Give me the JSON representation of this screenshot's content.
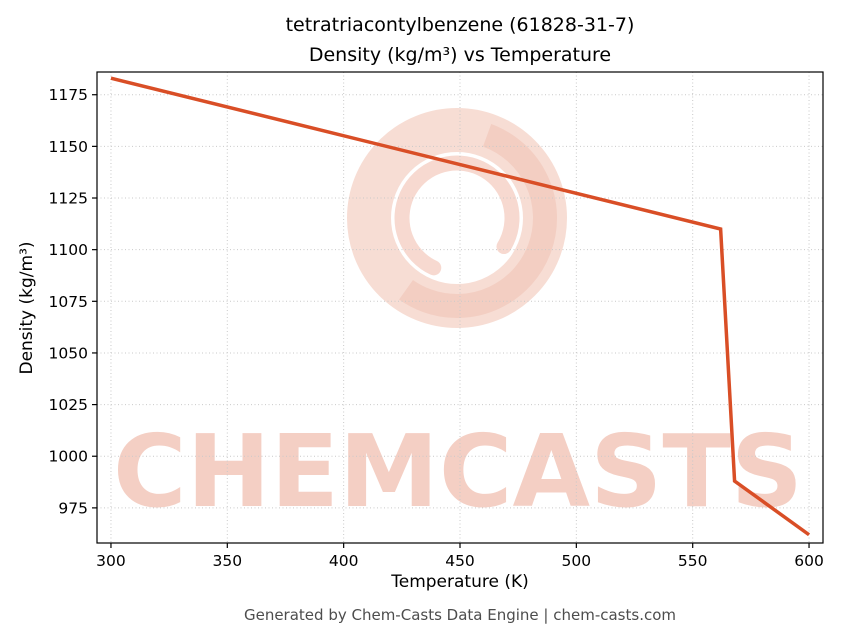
{
  "title_line1": "tetratriacontylbenzene (61828-31-7)",
  "title_line2": "Density (kg/m³) vs Temperature",
  "footer": "Generated by Chem-Casts Data Engine | chem-casts.com",
  "watermark": {
    "text": "CHEMCASTS",
    "logo": "chemcasts-brush-ring-logo",
    "color": "#d9532a"
  },
  "chart_data": {
    "type": "line",
    "title": "tetratriacontylbenzene (61828-31-7) Density (kg/m³) vs Temperature",
    "xlabel": "Temperature (K)",
    "ylabel": "Density (kg/m³)",
    "x": [
      300,
      562,
      568,
      600
    ],
    "y": [
      1183,
      1110,
      988,
      962
    ],
    "x_ticks": [
      300,
      350,
      400,
      450,
      500,
      550,
      600
    ],
    "y_ticks": [
      975,
      1000,
      1025,
      1050,
      1075,
      1100,
      1125,
      1150,
      1175
    ],
    "xlim": [
      294,
      606
    ],
    "ylim": [
      958,
      1186
    ],
    "line_color": "#d94e26",
    "grid": true,
    "grid_style": "dotted",
    "legend": "none"
  }
}
